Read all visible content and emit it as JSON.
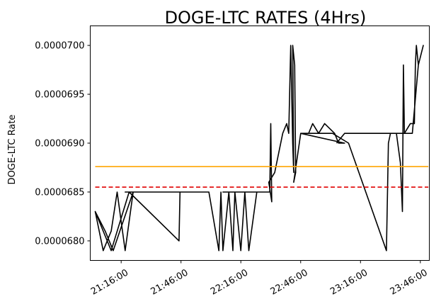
{
  "chart_data": {
    "type": "line",
    "title": "DOGE-LTC RATES (4Hrs)",
    "xlabel": "",
    "ylabel": "DOGE-LTC Rate",
    "x_unit": "HH:MM:SS",
    "xlim": [
      "21:00:30",
      "23:50:30"
    ],
    "ylim": [
      6.78e-05,
      7.02e-05
    ],
    "x_ticks": [
      "21:16:00",
      "21:46:00",
      "22:16:00",
      "22:46:00",
      "23:16:00",
      "23:46:00"
    ],
    "y_ticks": [
      "0.0000680",
      "0.0000685",
      "0.0000690",
      "0.0000695",
      "0.0000700"
    ],
    "grid": false,
    "series": [
      {
        "style": "solid",
        "color": "#000000",
        "x": [
          "21:03:00",
          "21:07:00",
          "21:11:00",
          "21:14:00",
          "21:18:00",
          "21:22:00",
          "21:12:00",
          "21:08:00",
          "21:03:00",
          "21:11:00",
          "21:20:00",
          "21:45:00",
          "21:45:30",
          "21:45:00",
          "21:26:00",
          "21:18:00",
          "22:00:00",
          "22:05:00",
          "22:06:00",
          "22:07:00",
          "22:10:00",
          "22:12:00",
          "22:13:00",
          "22:16:00",
          "22:18:00",
          "22:20:00",
          "22:24:00",
          "22:16:30",
          "22:09:00",
          "22:07:00",
          "22:30:00",
          "22:30:30",
          "22:31:00",
          "22:31:30",
          "22:30:00",
          "22:33:00",
          "22:37:00",
          "22:39:00",
          "22:40:00",
          "22:41:00",
          "22:42:00",
          "22:42:30",
          "22:42:00",
          "22:43:00",
          "22:43:30",
          "22:42:30",
          "22:46:00",
          "22:48:00",
          "22:50:00",
          "22:52:00",
          "22:55:00",
          "22:58:00",
          "23:03:00",
          "23:05:00",
          "23:08:00",
          "22:46:00",
          "23:02:00",
          "23:10:00",
          "23:29:00",
          "23:30:00",
          "23:31:00",
          "23:34:00",
          "23:36:00",
          "23:37:00",
          "23:37:30",
          "23:38:00",
          "23:41:00",
          "23:43:00",
          "23:43:30",
          "23:44:00",
          "23:45:00",
          "23:47:30",
          "23:45:00",
          "23:42:00",
          "23:36:00",
          "23:31:00",
          "23:28:00",
          "23:08:00",
          "23:04:00"
        ],
        "y": [
          6.83e-05,
          6.79e-05,
          6.81e-05,
          6.85e-05,
          6.79e-05,
          6.85e-05,
          6.79e-05,
          6.81e-05,
          6.83e-05,
          6.79e-05,
          6.85e-05,
          6.8e-05,
          6.85e-05,
          6.85e-05,
          6.85e-05,
          6.85e-05,
          6.85e-05,
          6.79e-05,
          6.85e-05,
          6.79e-05,
          6.85e-05,
          6.79e-05,
          6.85e-05,
          6.79e-05,
          6.85e-05,
          6.79e-05,
          6.85e-05,
          6.85e-05,
          6.85e-05,
          6.85e-05,
          6.85e-05,
          6.85e-05,
          6.92e-05,
          6.84e-05,
          6.86e-05,
          6.87e-05,
          6.91e-05,
          6.92e-05,
          6.91e-05,
          7e-05,
          6.9e-05,
          6.87e-05,
          7e-05,
          6.98e-05,
          6.87e-05,
          6.86e-05,
          6.91e-05,
          6.91e-05,
          6.91e-05,
          6.92e-05,
          6.91e-05,
          6.92e-05,
          6.91e-05,
          6.9e-05,
          6.9e-05,
          6.91e-05,
          6.91e-05,
          6.9e-05,
          6.79e-05,
          6.9e-05,
          6.91e-05,
          6.91e-05,
          6.88e-05,
          6.83e-05,
          6.98e-05,
          6.91e-05,
          6.92e-05,
          6.92e-05,
          6.98e-05,
          7e-05,
          6.98e-05,
          7e-05,
          6.98e-05,
          6.91e-05,
          6.91e-05,
          6.91e-05,
          6.91e-05,
          6.91e-05,
          6.9e-05
        ]
      },
      {
        "style": "solid",
        "color": "#ffa500",
        "x": [
          "21:03:00",
          "23:50:00"
        ],
        "y": [
          6.876e-05,
          6.876e-05
        ]
      },
      {
        "style": "dashed",
        "color": "#e00000",
        "x": [
          "21:03:00",
          "23:50:00"
        ],
        "y": [
          6.855e-05,
          6.855e-05
        ]
      }
    ]
  }
}
